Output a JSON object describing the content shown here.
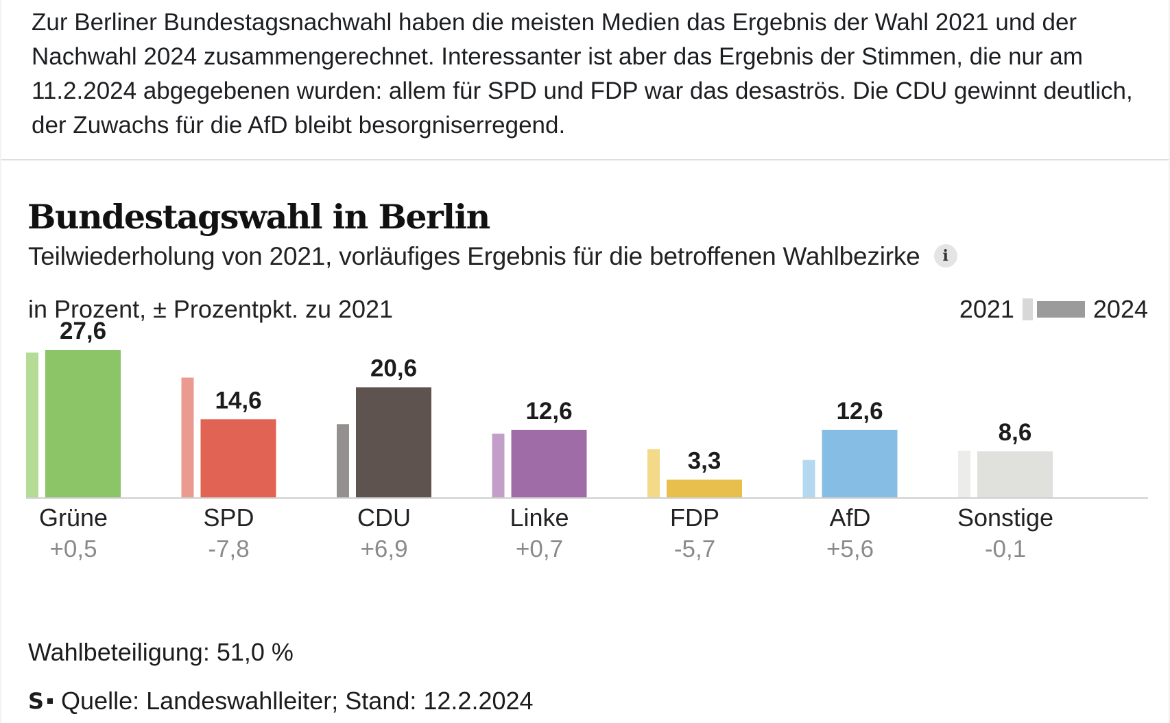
{
  "post": {
    "text": "Zur Berliner Bundestagsnachwahl haben die meisten Medien das Ergebnis der Wahl 2021 und der Nachwahl 2024 zusammengerechnet. Interessanter ist aber das Ergebnis der Stimmen, die nur am 11.2.2024 abgegebenen wurden:  allem für SPD und FDP war das desaströs. Die CDU gewinnt deutlich, der Zuwachs für die AfD bleibt besorgniserregend."
  },
  "chart_card": {
    "title": "Bundestagswahl in Berlin",
    "subtitle": "Teilwiederholung von 2021, vorläufiges Ergebnis für die betroffenen Wahlbezirke",
    "info_icon": "i",
    "unit_label": "in Prozent, ± Prozentpkt. zu 2021",
    "legend": {
      "year_old": "2021",
      "year_new": "2024"
    },
    "turnout": "Wahlbeteiligung: 51,0 %",
    "source_logo": "S",
    "source": "Quelle: Landeswahlleiter; Stand: 12.2.2024"
  },
  "chart_data": {
    "type": "bar",
    "title": "Bundestagswahl in Berlin",
    "categories": [
      "Grüne",
      "SPD",
      "CDU",
      "Linke",
      "FDP",
      "AfD",
      "Sonstige"
    ],
    "series": [
      {
        "name": "2021",
        "values": [
          27.1,
          22.4,
          13.7,
          11.9,
          9.0,
          7.0,
          8.7
        ]
      },
      {
        "name": "2024",
        "values": [
          27.6,
          14.6,
          20.6,
          12.6,
          3.3,
          12.6,
          8.6
        ]
      }
    ],
    "value_labels": [
      "27,6",
      "14,6",
      "20,6",
      "12,6",
      "3,3",
      "12,6",
      "8,6"
    ],
    "changes": [
      "+0,5",
      "-7,8",
      "+6,9",
      "+0,7",
      "-5,7",
      "+5,6",
      "-0,1"
    ],
    "colors_2024": [
      "#8cc468",
      "#e06353",
      "#5e534f",
      "#a06ca8",
      "#e8bf4c",
      "#86bde5",
      "#e0e0dc"
    ],
    "colors_2021": [
      "#b4dc96",
      "#eb9a8f",
      "#949090",
      "#c29ec8",
      "#f2da88",
      "#b4d8f0",
      "#ececea"
    ],
    "ylim": [
      0,
      30
    ],
    "grid": false,
    "legend_position": "top-right"
  }
}
